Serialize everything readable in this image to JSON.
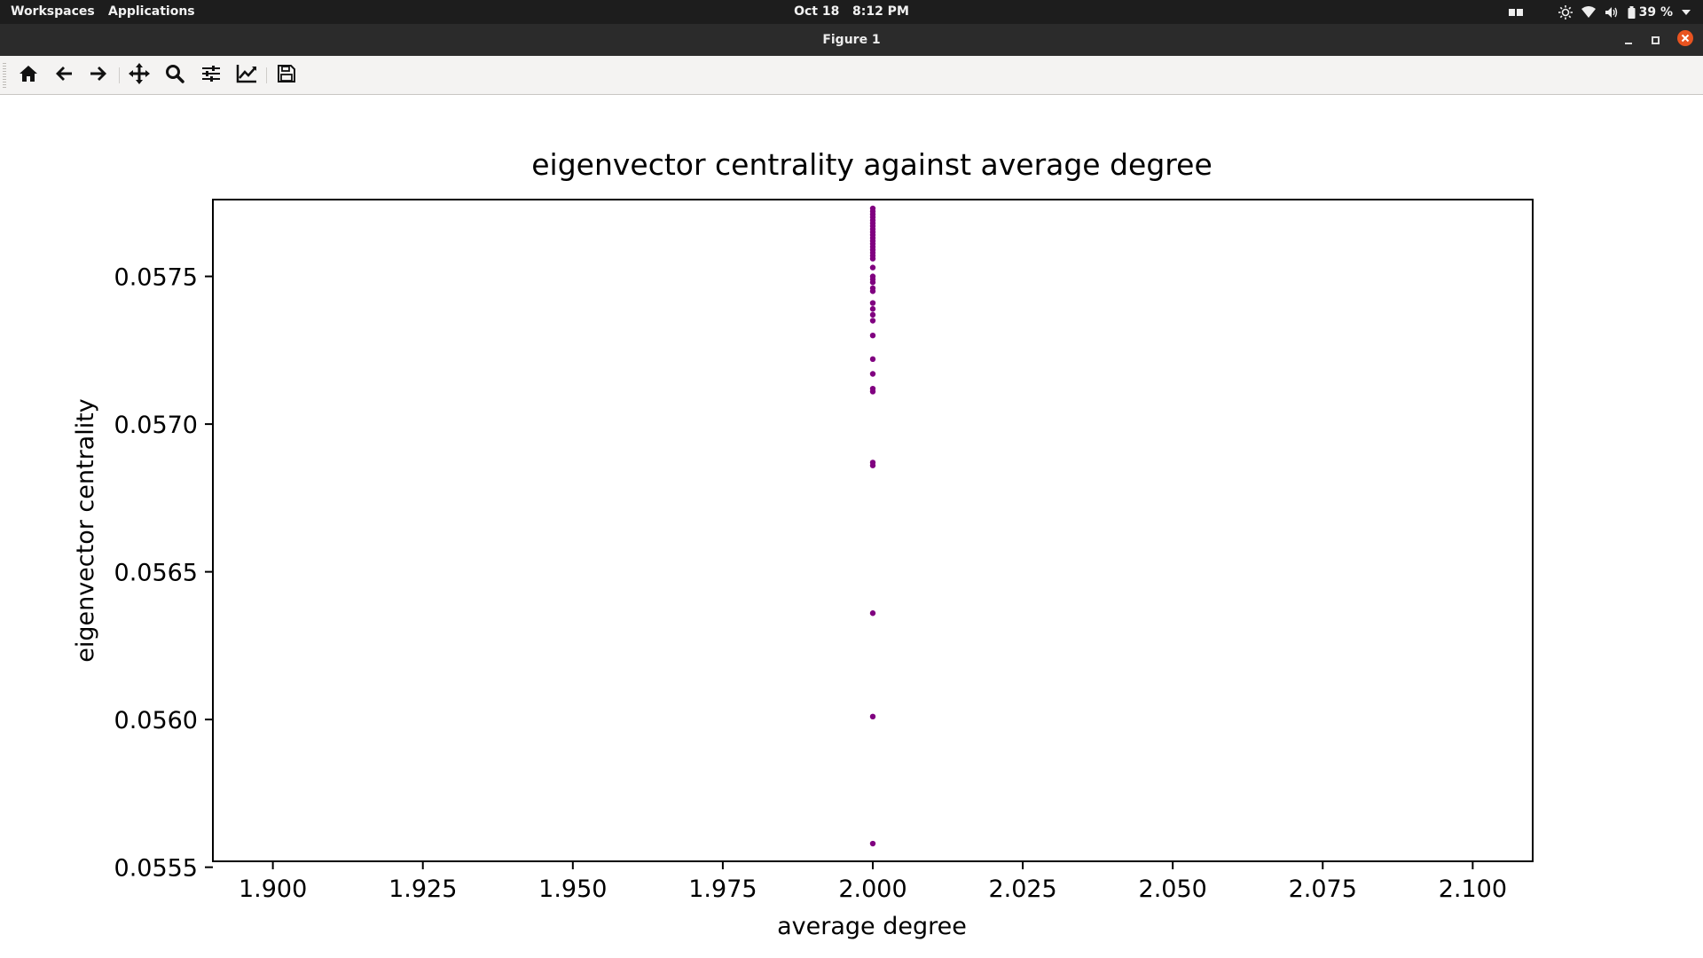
{
  "system_bar": {
    "workspaces_label": "Workspaces",
    "applications_label": "Applications",
    "date": "Oct 18",
    "time": "8:12 PM",
    "battery_percent": "39 %"
  },
  "window": {
    "title": "Figure 1",
    "close_color": "#e95420"
  },
  "toolbar": {
    "buttons": [
      {
        "name": "home",
        "icon": "home-icon"
      },
      {
        "name": "back",
        "icon": "arrow-left-icon"
      },
      {
        "name": "forward",
        "icon": "arrow-right-icon"
      },
      {
        "name": "pan",
        "icon": "move-icon"
      },
      {
        "name": "zoom",
        "icon": "magnifier-icon"
      },
      {
        "name": "configure-subplots",
        "icon": "sliders-icon"
      },
      {
        "name": "edit-axis",
        "icon": "line-chart-icon"
      },
      {
        "name": "save",
        "icon": "floppy-disk-icon"
      }
    ]
  },
  "chart_data": {
    "type": "scatter",
    "title": "eigenvector centrality against average degree",
    "xlabel": "average degree",
    "ylabel": "eigenvector centrality",
    "xlim": [
      1.89,
      2.11
    ],
    "ylim": [
      0.05552,
      0.05776
    ],
    "xticks": [
      1.9,
      1.925,
      1.95,
      1.975,
      2.0,
      2.025,
      2.05,
      2.075,
      2.1
    ],
    "xtick_labels": [
      "1.900",
      "1.925",
      "1.950",
      "1.975",
      "2.000",
      "2.025",
      "2.050",
      "2.075",
      "2.100"
    ],
    "yticks": [
      0.0555,
      0.056,
      0.0565,
      0.057,
      0.0575
    ],
    "ytick_labels": [
      "0.0555",
      "0.0560",
      "0.0565",
      "0.0570",
      "0.0575"
    ],
    "marker_color": "#800080",
    "grid": false,
    "points": [
      {
        "x": 2.0,
        "y": 0.05558
      },
      {
        "x": 2.0,
        "y": 0.05601
      },
      {
        "x": 2.0,
        "y": 0.05636
      },
      {
        "x": 2.0,
        "y": 0.05686
      },
      {
        "x": 2.0,
        "y": 0.05687
      },
      {
        "x": 2.0,
        "y": 0.05711
      },
      {
        "x": 2.0,
        "y": 0.05712
      },
      {
        "x": 2.0,
        "y": 0.05717
      },
      {
        "x": 2.0,
        "y": 0.05722
      },
      {
        "x": 2.0,
        "y": 0.0573
      },
      {
        "x": 2.0,
        "y": 0.05735
      },
      {
        "x": 2.0,
        "y": 0.05737
      },
      {
        "x": 2.0,
        "y": 0.05739
      },
      {
        "x": 2.0,
        "y": 0.05741
      },
      {
        "x": 2.0,
        "y": 0.05745
      },
      {
        "x": 2.0,
        "y": 0.05746
      },
      {
        "x": 2.0,
        "y": 0.05748
      },
      {
        "x": 2.0,
        "y": 0.05749
      },
      {
        "x": 2.0,
        "y": 0.0575
      },
      {
        "x": 2.0,
        "y": 0.05753
      },
      {
        "x": 2.0,
        "y": 0.05756
      },
      {
        "x": 2.0,
        "y": 0.05757
      },
      {
        "x": 2.0,
        "y": 0.05758
      },
      {
        "x": 2.0,
        "y": 0.05759
      },
      {
        "x": 2.0,
        "y": 0.0576
      },
      {
        "x": 2.0,
        "y": 0.05761
      },
      {
        "x": 2.0,
        "y": 0.05762
      },
      {
        "x": 2.0,
        "y": 0.05763
      },
      {
        "x": 2.0,
        "y": 0.05764
      },
      {
        "x": 2.0,
        "y": 0.05765
      },
      {
        "x": 2.0,
        "y": 0.05766
      },
      {
        "x": 2.0,
        "y": 0.05767
      },
      {
        "x": 2.0,
        "y": 0.05768
      },
      {
        "x": 2.0,
        "y": 0.05769
      },
      {
        "x": 2.0,
        "y": 0.0577
      },
      {
        "x": 2.0,
        "y": 0.05771
      },
      {
        "x": 2.0,
        "y": 0.05772
      },
      {
        "x": 2.0,
        "y": 0.05773
      }
    ]
  }
}
